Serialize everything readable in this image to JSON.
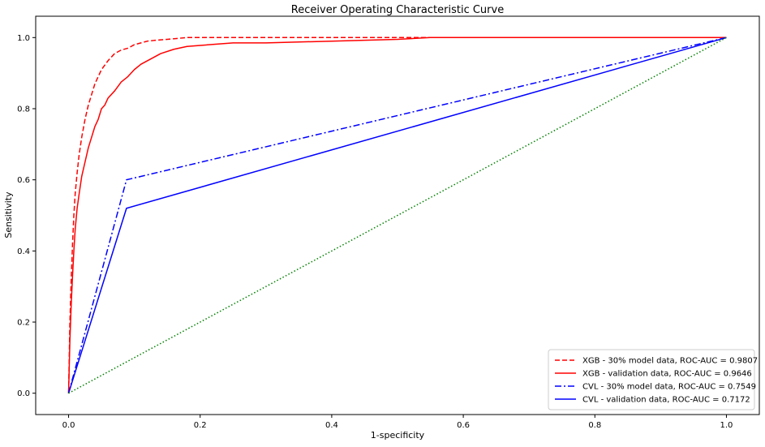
{
  "chart_data": {
    "type": "line",
    "title": "Receiver Operating Characteristic Curve",
    "xlabel": "1-specificity",
    "ylabel": "Sensitivity",
    "xlim": [
      -0.05,
      1.05
    ],
    "ylim": [
      -0.06,
      1.06
    ],
    "xticks": [
      0.0,
      0.2,
      0.4,
      0.6,
      0.8,
      1.0
    ],
    "xtick_labels": [
      "0.0",
      "0.2",
      "0.4",
      "0.6",
      "0.8",
      "1.0"
    ],
    "yticks": [
      0.0,
      0.2,
      0.4,
      0.6,
      0.8,
      1.0
    ],
    "ytick_labels": [
      "0.0",
      "0.2",
      "0.4",
      "0.6",
      "0.8",
      "1.0"
    ],
    "grid": false,
    "legend_position": "lower-right",
    "series": [
      {
        "name": "XGB - 30% model data, ROC-AUC = 0.9807",
        "color": "#ff0000",
        "dash": "dashed",
        "x": [
          0.0,
          0.002,
          0.004,
          0.006,
          0.008,
          0.01,
          0.013,
          0.016,
          0.02,
          0.025,
          0.03,
          0.035,
          0.04,
          0.045,
          0.05,
          0.06,
          0.07,
          0.08,
          0.09,
          0.1,
          0.11,
          0.12,
          0.13,
          0.15,
          0.18,
          0.25,
          0.4,
          0.55,
          0.7,
          0.85,
          1.0
        ],
        "y": [
          0.0,
          0.2,
          0.32,
          0.42,
          0.5,
          0.56,
          0.62,
          0.67,
          0.72,
          0.77,
          0.81,
          0.84,
          0.87,
          0.89,
          0.91,
          0.935,
          0.955,
          0.965,
          0.97,
          0.98,
          0.985,
          0.99,
          0.992,
          0.995,
          1.0,
          1.0,
          1.0,
          1.0,
          1.0,
          1.0,
          1.0
        ]
      },
      {
        "name": "XGB - validation data, ROC-AUC = 0.9646",
        "color": "#ff0000",
        "dash": "solid",
        "x": [
          0.0,
          0.002,
          0.004,
          0.006,
          0.008,
          0.01,
          0.013,
          0.016,
          0.02,
          0.025,
          0.03,
          0.035,
          0.04,
          0.045,
          0.05,
          0.055,
          0.06,
          0.07,
          0.08,
          0.09,
          0.1,
          0.11,
          0.12,
          0.14,
          0.16,
          0.18,
          0.2,
          0.25,
          0.3,
          0.4,
          0.5,
          0.55,
          0.7,
          0.85,
          1.0
        ],
        "y": [
          0.0,
          0.15,
          0.25,
          0.33,
          0.4,
          0.46,
          0.52,
          0.56,
          0.61,
          0.65,
          0.69,
          0.72,
          0.75,
          0.77,
          0.8,
          0.81,
          0.83,
          0.85,
          0.875,
          0.89,
          0.91,
          0.925,
          0.935,
          0.955,
          0.967,
          0.975,
          0.978,
          0.985,
          0.985,
          0.99,
          0.995,
          1.0,
          1.0,
          1.0,
          1.0
        ]
      },
      {
        "name": "CVL - 30% model data, ROC-AUC = 0.7549",
        "color": "#0000ff",
        "dash": "dashdot",
        "x": [
          0.0,
          0.088,
          1.0
        ],
        "y": [
          0.0,
          0.6,
          1.0
        ]
      },
      {
        "name": "CVL - validation data, ROC-AUC = 0.7172",
        "color": "#0000ff",
        "dash": "solid",
        "x": [
          0.0,
          0.088,
          1.0
        ],
        "y": [
          0.0,
          0.52,
          1.0
        ]
      },
      {
        "color": "#008000",
        "dash": "dotted",
        "x": [
          0.0,
          1.0
        ],
        "y": [
          0.0,
          1.0
        ]
      }
    ]
  }
}
